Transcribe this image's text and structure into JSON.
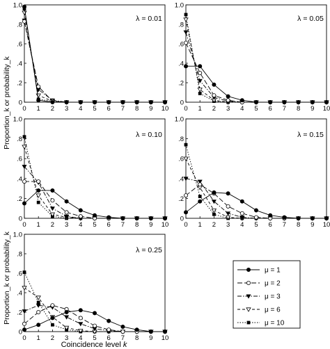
{
  "figure": {
    "ylabel": "Proportion_k or probability_k",
    "xlabel": "Coincidence level k",
    "legend_title": ""
  },
  "chart_data": [
    {
      "type": "line",
      "annotation": "λ = 0.01",
      "x": [
        0,
        1,
        2,
        3,
        4,
        5,
        6,
        7,
        8,
        9,
        10
      ],
      "xlim": [
        0,
        10
      ],
      "ylim": [
        0,
        1.0
      ],
      "x_ticks": [
        "0",
        "1",
        "2",
        "3",
        "4",
        "5",
        "6",
        "7",
        "8",
        "9",
        "10"
      ],
      "y_ticks": [
        "0",
        ".2",
        ".4",
        ".6",
        ".8",
        "1.0"
      ],
      "series": [
        {
          "name": "μ = 1",
          "values": [
            0.98,
            0.02,
            0,
            0,
            0,
            0,
            0,
            0,
            0,
            0,
            0
          ]
        },
        {
          "name": "μ = 2",
          "values": [
            0.83,
            0.16,
            0.01,
            0,
            0,
            0,
            0,
            0,
            0,
            0,
            0
          ]
        },
        {
          "name": "μ = 3",
          "values": [
            0.84,
            0.13,
            0.02,
            0,
            0,
            0,
            0,
            0,
            0,
            0,
            0
          ]
        },
        {
          "name": "μ = 6",
          "values": [
            0.92,
            0.07,
            0.01,
            0,
            0,
            0,
            0,
            0,
            0,
            0,
            0
          ]
        },
        {
          "name": "μ = 10",
          "values": [
            0.96,
            0.03,
            0.01,
            0,
            0,
            0,
            0,
            0,
            0,
            0,
            0
          ]
        }
      ]
    },
    {
      "type": "line",
      "annotation": "λ = 0.05",
      "x": [
        0,
        1,
        2,
        3,
        4,
        5,
        6,
        7,
        8,
        9,
        10
      ],
      "xlim": [
        0,
        10
      ],
      "ylim": [
        0,
        1.0
      ],
      "x_ticks": [
        "0",
        "1",
        "2",
        "3",
        "4",
        "5",
        "6",
        "7",
        "8",
        "9",
        "10"
      ],
      "y_ticks": [
        "0",
        ".2",
        ".4",
        ".6",
        ".8",
        "1.0"
      ],
      "series": [
        {
          "name": "μ = 1",
          "values": [
            0.37,
            0.37,
            0.18,
            0.06,
            0.02,
            0,
            0,
            0,
            0,
            0,
            0
          ]
        },
        {
          "name": "μ = 2",
          "values": [
            0.61,
            0.3,
            0.07,
            0.02,
            0,
            0,
            0,
            0,
            0,
            0,
            0
          ]
        },
        {
          "name": "μ = 3",
          "values": [
            0.72,
            0.22,
            0.05,
            0.01,
            0,
            0,
            0,
            0,
            0,
            0,
            0
          ]
        },
        {
          "name": "μ = 6",
          "values": [
            0.85,
            0.13,
            0.02,
            0,
            0,
            0,
            0,
            0,
            0,
            0,
            0
          ]
        },
        {
          "name": "μ = 10",
          "values": [
            0.9,
            0.09,
            0.01,
            0,
            0,
            0,
            0,
            0,
            0,
            0,
            0
          ]
        }
      ]
    },
    {
      "type": "line",
      "annotation": "λ = 0.10",
      "x": [
        0,
        1,
        2,
        3,
        4,
        5,
        6,
        7,
        8,
        9,
        10
      ],
      "xlim": [
        0,
        10
      ],
      "ylim": [
        0,
        1.0
      ],
      "x_ticks": [
        "0",
        "1",
        "2",
        "3",
        "4",
        "5",
        "6",
        "7",
        "8",
        "9",
        "10"
      ],
      "y_ticks": [
        "0",
        ".2",
        ".4",
        ".6",
        ".8",
        "1.0"
      ],
      "series": [
        {
          "name": "μ = 1",
          "values": [
            0.15,
            0.28,
            0.28,
            0.17,
            0.08,
            0.03,
            0.01,
            0,
            0,
            0,
            0
          ]
        },
        {
          "name": "μ = 2",
          "values": [
            0.37,
            0.37,
            0.18,
            0.06,
            0.02,
            0,
            0,
            0,
            0,
            0,
            0
          ]
        },
        {
          "name": "μ = 3",
          "values": [
            0.52,
            0.36,
            0.1,
            0.02,
            0,
            0,
            0,
            0,
            0,
            0,
            0
          ]
        },
        {
          "name": "μ = 6",
          "values": [
            0.72,
            0.23,
            0.04,
            0.01,
            0,
            0,
            0,
            0,
            0,
            0,
            0
          ]
        },
        {
          "name": "μ = 10",
          "values": [
            0.82,
            0.16,
            0.02,
            0,
            0,
            0,
            0,
            0,
            0,
            0,
            0
          ]
        }
      ]
    },
    {
      "type": "line",
      "annotation": "λ = 0.15",
      "x": [
        0,
        1,
        2,
        3,
        4,
        5,
        6,
        7,
        8,
        9,
        10
      ],
      "xlim": [
        0,
        10
      ],
      "ylim": [
        0,
        1.0
      ],
      "x_ticks": [
        "0",
        "1",
        "2",
        "3",
        "4",
        "5",
        "6",
        "7",
        "8",
        "9",
        "10"
      ],
      "y_ticks": [
        "0",
        ".2",
        ".4",
        ".6",
        ".8",
        "1.0"
      ],
      "series": [
        {
          "name": "μ = 1",
          "values": [
            0.06,
            0.17,
            0.26,
            0.25,
            0.17,
            0.08,
            0.03,
            0.01,
            0,
            0,
            0
          ]
        },
        {
          "name": "μ = 2",
          "values": [
            0.23,
            0.34,
            0.25,
            0.12,
            0.05,
            0.01,
            0,
            0,
            0,
            0,
            0
          ]
        },
        {
          "name": "μ = 3",
          "values": [
            0.4,
            0.37,
            0.17,
            0.05,
            0.01,
            0,
            0,
            0,
            0,
            0,
            0
          ]
        },
        {
          "name": "μ = 6",
          "values": [
            0.6,
            0.31,
            0.08,
            0.01,
            0,
            0,
            0,
            0,
            0,
            0,
            0
          ]
        },
        {
          "name": "μ = 10",
          "values": [
            0.74,
            0.22,
            0.04,
            0,
            0,
            0,
            0,
            0,
            0,
            0,
            0
          ]
        }
      ]
    },
    {
      "type": "line",
      "annotation": "λ = 0.25",
      "x": [
        0,
        1,
        2,
        3,
        4,
        5,
        6,
        7,
        8,
        9,
        10
      ],
      "xlim": [
        0,
        10
      ],
      "ylim": [
        0,
        1.0
      ],
      "x_ticks": [
        "0",
        "1",
        "2",
        "3",
        "4",
        "5",
        "6",
        "7",
        "8",
        "9",
        "10"
      ],
      "y_ticks": [
        "0",
        ".2",
        ".4",
        ".6",
        ".8",
        "1.0"
      ],
      "series": [
        {
          "name": "μ = 1",
          "values": [
            0.02,
            0.07,
            0.14,
            0.2,
            0.22,
            0.19,
            0.11,
            0.05,
            0.02,
            0,
            0
          ]
        },
        {
          "name": "μ = 2",
          "values": [
            0.08,
            0.2,
            0.27,
            0.23,
            0.14,
            0.06,
            0.02,
            0,
            0,
            0,
            0
          ]
        },
        {
          "name": "μ = 3",
          "values": [
            0.21,
            0.27,
            0.25,
            0.15,
            0.08,
            0.03,
            0.01,
            0,
            0,
            0,
            0
          ]
        },
        {
          "name": "μ = 6",
          "values": [
            0.45,
            0.35,
            0.15,
            0.04,
            0.01,
            0,
            0,
            0,
            0,
            0,
            0
          ]
        },
        {
          "name": "μ = 10",
          "values": [
            0.61,
            0.3,
            0.07,
            0.02,
            0,
            0,
            0,
            0,
            0,
            0,
            0
          ]
        }
      ]
    }
  ],
  "legend": [
    {
      "label": "μ = 1",
      "marker": "circle-filled",
      "dash": "solid"
    },
    {
      "label": "μ = 2",
      "marker": "circle-open",
      "dash": "longdash"
    },
    {
      "label": "μ = 3",
      "marker": "triangle-down-filled",
      "dash": "dashdot"
    },
    {
      "label": "μ = 6",
      "marker": "triangle-down-open",
      "dash": "dash"
    },
    {
      "label": "μ = 10",
      "marker": "square-filled",
      "dash": "dot"
    }
  ]
}
